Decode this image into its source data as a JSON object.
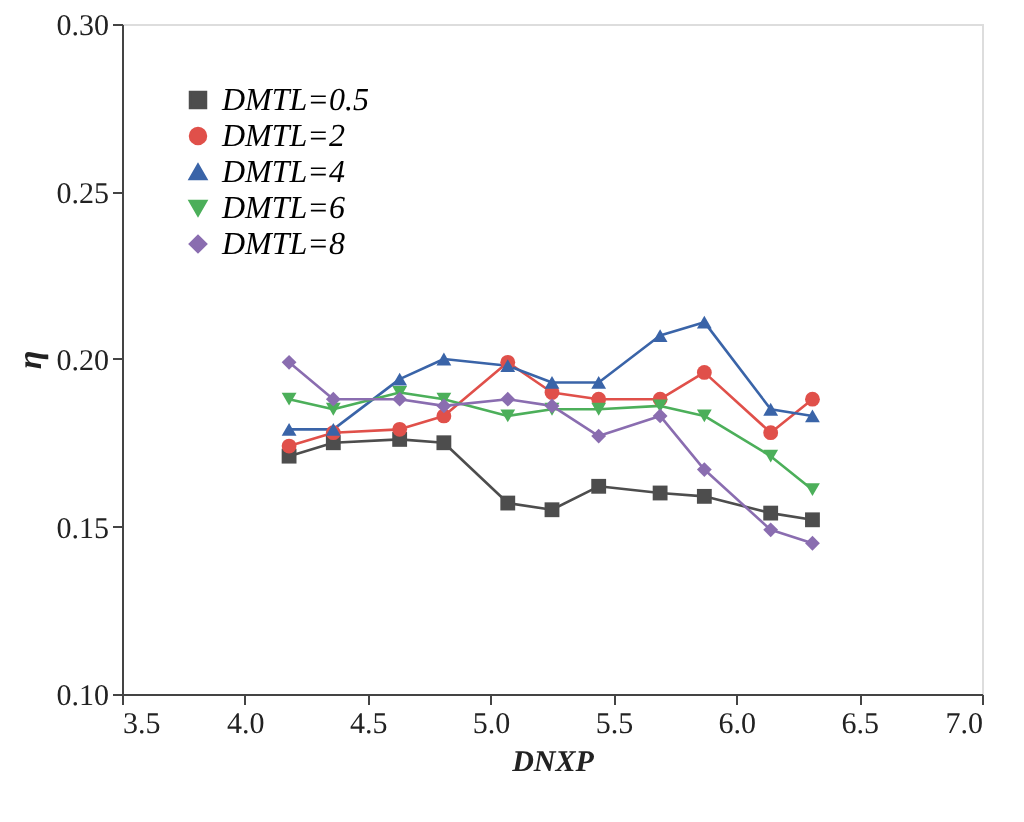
{
  "chart_data": {
    "type": "line",
    "xlabel": "DNXP",
    "ylabel": "η",
    "x": [
      4.18,
      4.36,
      4.63,
      4.81,
      5.07,
      5.25,
      5.44,
      5.69,
      5.87,
      6.14,
      6.31
    ],
    "series": [
      {
        "name": "DMTL=0.5",
        "color": "#4d4d4d",
        "marker": "square",
        "values": [
          0.171,
          0.175,
          0.176,
          0.175,
          0.157,
          0.155,
          0.162,
          0.16,
          0.159,
          0.154,
          0.152
        ]
      },
      {
        "name": "DMTL=2",
        "color": "#e0504a",
        "marker": "circle",
        "values": [
          0.174,
          0.178,
          0.179,
          0.183,
          0.199,
          0.19,
          0.188,
          0.188,
          0.196,
          0.178,
          0.188
        ]
      },
      {
        "name": "DMTL=4",
        "color": "#3a64a8",
        "marker": "triangle",
        "values": [
          0.179,
          0.179,
          0.194,
          0.2,
          0.198,
          0.193,
          0.193,
          0.207,
          0.211,
          0.185,
          0.183
        ]
      },
      {
        "name": "DMTL=6",
        "color": "#4caf5a",
        "marker": "triangle-down",
        "values": [
          0.188,
          0.185,
          0.19,
          0.188,
          0.183,
          0.185,
          0.185,
          0.186,
          0.183,
          0.171,
          0.161
        ]
      },
      {
        "name": "DMTL=8",
        "color": "#8a6db0",
        "marker": "diamond",
        "values": [
          0.199,
          0.188,
          0.188,
          0.186,
          0.188,
          0.186,
          0.177,
          0.183,
          0.167,
          0.149,
          0.145
        ]
      }
    ],
    "xlim": [
      3.5,
      7.0
    ],
    "xticks": [
      {
        "value": 3.5,
        "label": "3.5"
      },
      {
        "value": 4.0,
        "label": "4.0"
      },
      {
        "value": 4.5,
        "label": "4.5"
      },
      {
        "value": 5.0,
        "label": "5.0"
      },
      {
        "value": 5.5,
        "label": "5.5"
      },
      {
        "value": 6.0,
        "label": "6.0"
      },
      {
        "value": 6.5,
        "label": "6.5"
      },
      {
        "value": 7.0,
        "label": "7.0"
      }
    ],
    "ylim": [
      0.1,
      0.3
    ],
    "yticks": [
      {
        "value": 0.1,
        "label": "0.10"
      },
      {
        "value": 0.15,
        "label": "0.15"
      },
      {
        "value": 0.2,
        "label": "0.20"
      },
      {
        "value": 0.25,
        "label": "0.25"
      },
      {
        "value": 0.3,
        "label": "0.30"
      }
    ],
    "grid": false,
    "legend": "top left",
    "line_style": "solid"
  }
}
